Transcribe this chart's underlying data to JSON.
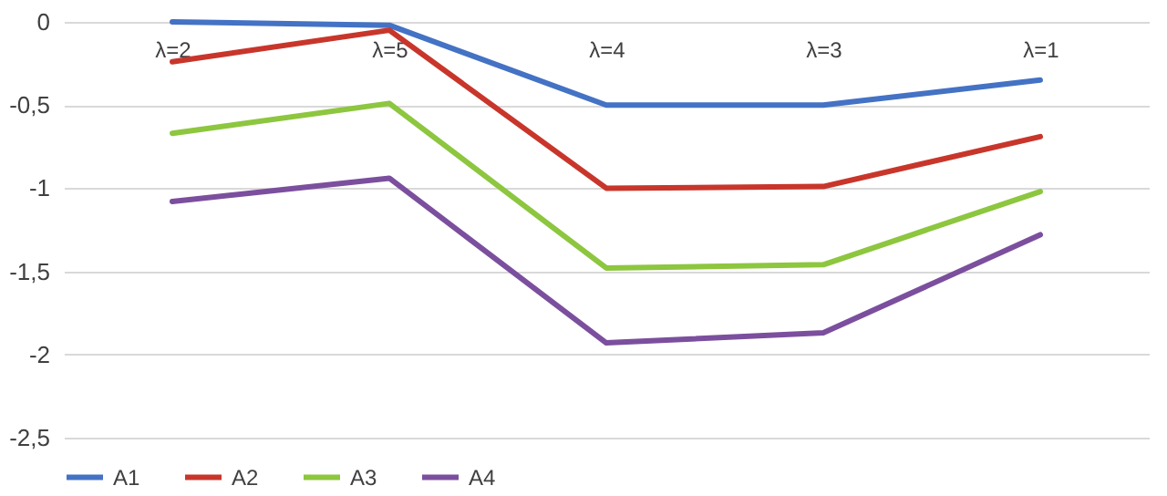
{
  "chart_data": {
    "type": "line",
    "categories": [
      "λ=2",
      "λ=5",
      "λ=4",
      "λ=3",
      "λ=1"
    ],
    "series": [
      {
        "name": "A1",
        "color": "#4472c4",
        "values": [
          0,
          -0.02,
          -0.5,
          -0.5,
          -0.35
        ]
      },
      {
        "name": "A2",
        "color": "#c8362b",
        "values": [
          -0.24,
          -0.05,
          -1.0,
          -0.99,
          -0.69
        ]
      },
      {
        "name": "A3",
        "color": "#8dc63f",
        "values": [
          -0.67,
          -0.49,
          -1.48,
          -1.46,
          -1.02
        ]
      },
      {
        "name": "A4",
        "color": "#7b4f9e",
        "values": [
          -1.08,
          -0.94,
          -1.93,
          -1.87,
          -1.28
        ]
      }
    ],
    "ylim": [
      -2.5,
      0
    ],
    "yticks": [
      0,
      {
        "value": -0.5,
        "label": "-0,5"
      },
      -1,
      {
        "value": -1.5,
        "label": "-1,5"
      },
      -2,
      {
        "value": -2.5,
        "label": "-2,5"
      }
    ],
    "grid": "y",
    "legend": "bottom",
    "marker": "none",
    "line_style": "solid"
  }
}
